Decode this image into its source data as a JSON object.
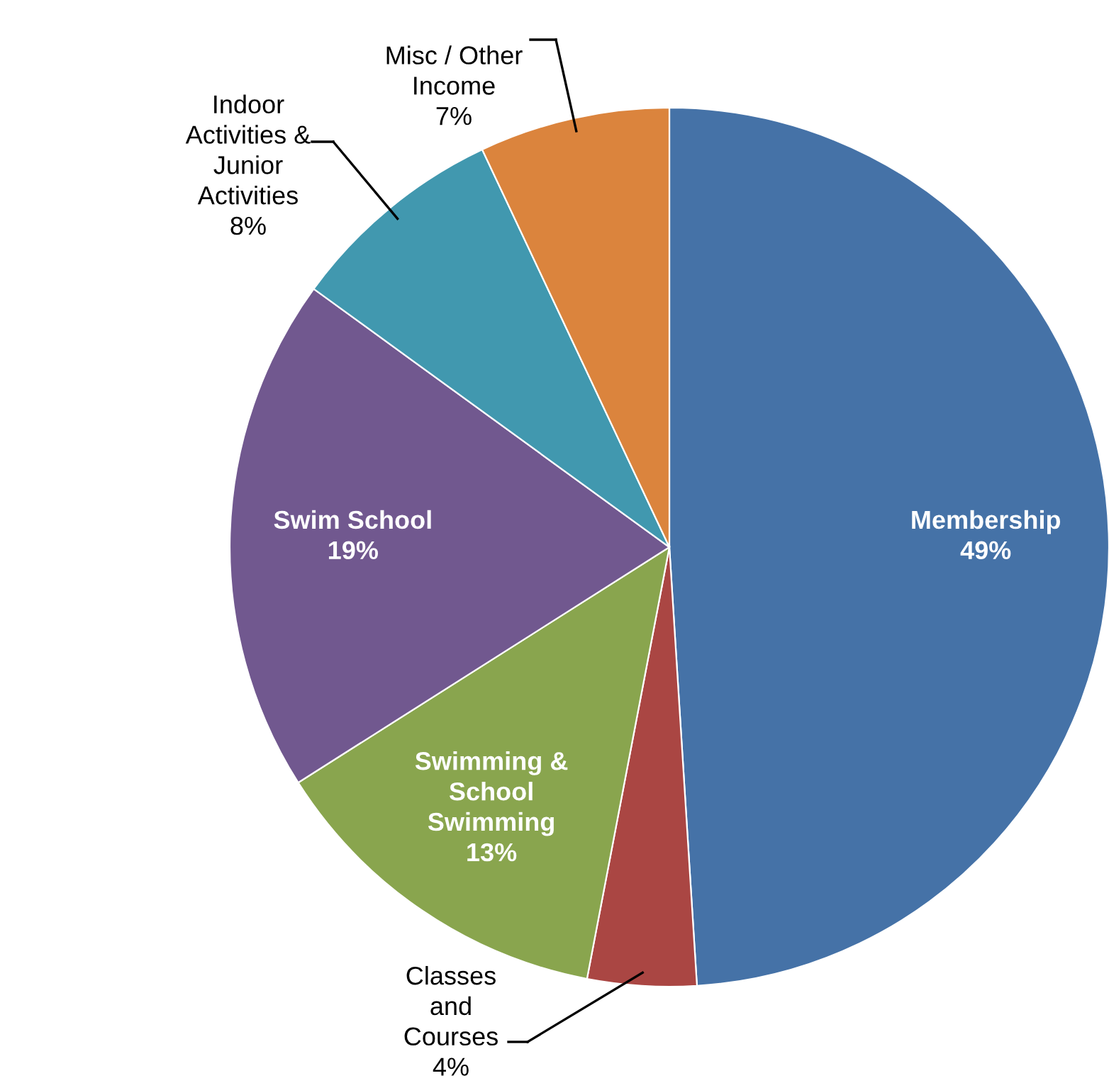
{
  "chart_data": {
    "type": "pie",
    "categories": [
      "Membership",
      "Classes\nand\nCourses",
      "Swimming &\nSchool\nSwimming",
      "Swim School",
      "Indoor\nActivities &\nJunior\nActivities",
      "Misc / Other\nIncome"
    ],
    "values": [
      49,
      4,
      13,
      19,
      8,
      7
    ],
    "value_labels": [
      "49%",
      "4%",
      "13%",
      "19%",
      "8%",
      "7%"
    ],
    "colors": [
      "#4572a7",
      "#aa4643",
      "#89a54e",
      "#71588f",
      "#4198af",
      "#db843d"
    ],
    "legend": false
  }
}
